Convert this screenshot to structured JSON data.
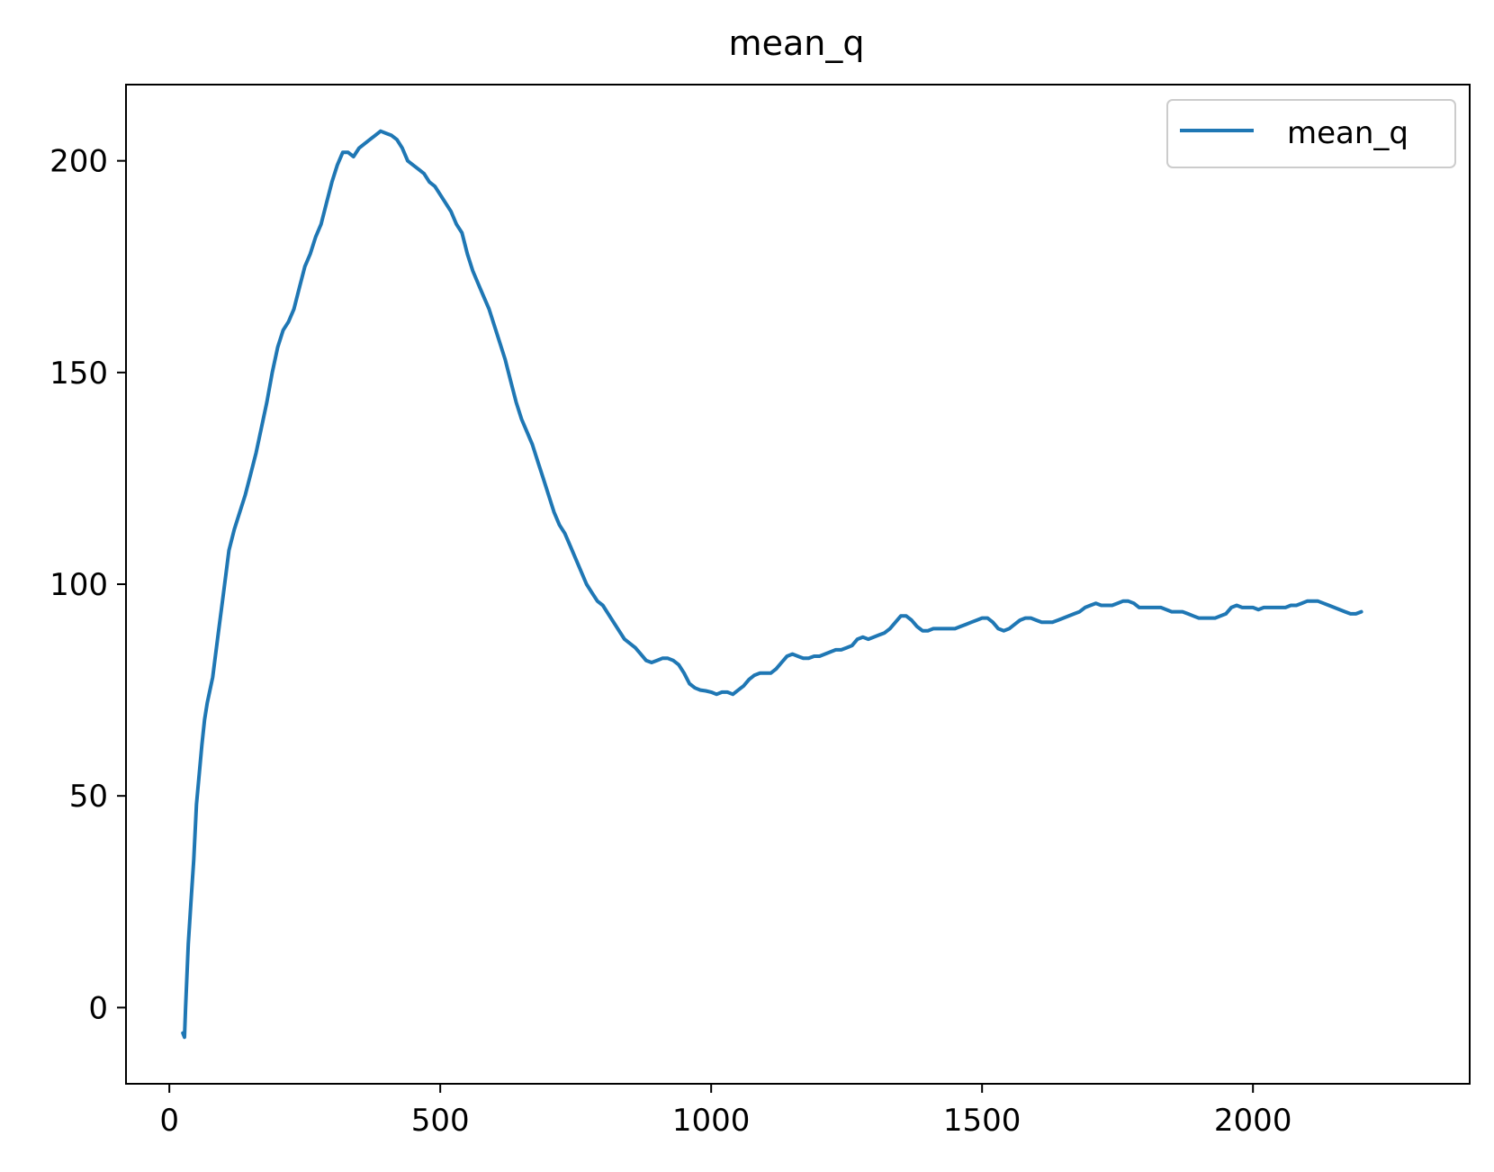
{
  "chart_data": {
    "type": "line",
    "title": "mean_q",
    "xlabel": "",
    "ylabel": "",
    "xlim": [
      -80,
      2400
    ],
    "ylim": [
      -18,
      218
    ],
    "x_ticks": [
      0,
      500,
      1000,
      1500,
      2000
    ],
    "y_ticks": [
      0,
      50,
      100,
      150,
      200
    ],
    "grid": false,
    "legend": {
      "position": "top-right",
      "entries": [
        "mean_q"
      ]
    },
    "series": [
      {
        "name": "mean_q",
        "color": "#1f77b4",
        "points": [
          [
            25,
            -6
          ],
          [
            28,
            -7
          ],
          [
            30,
            0
          ],
          [
            35,
            15
          ],
          [
            40,
            25
          ],
          [
            45,
            35
          ],
          [
            50,
            48
          ],
          [
            55,
            55
          ],
          [
            60,
            62
          ],
          [
            65,
            68
          ],
          [
            70,
            72
          ],
          [
            80,
            78
          ],
          [
            90,
            88
          ],
          [
            100,
            98
          ],
          [
            110,
            108
          ],
          [
            120,
            113
          ],
          [
            130,
            117
          ],
          [
            140,
            121
          ],
          [
            150,
            126
          ],
          [
            160,
            131
          ],
          [
            170,
            137
          ],
          [
            180,
            143
          ],
          [
            190,
            150
          ],
          [
            200,
            156
          ],
          [
            210,
            160
          ],
          [
            220,
            162
          ],
          [
            230,
            165
          ],
          [
            240,
            170
          ],
          [
            250,
            175
          ],
          [
            260,
            178
          ],
          [
            270,
            182
          ],
          [
            280,
            185
          ],
          [
            290,
            190
          ],
          [
            300,
            195
          ],
          [
            310,
            199
          ],
          [
            320,
            202
          ],
          [
            330,
            202
          ],
          [
            340,
            201
          ],
          [
            350,
            203
          ],
          [
            360,
            204
          ],
          [
            370,
            205
          ],
          [
            380,
            206
          ],
          [
            390,
            207
          ],
          [
            400,
            206.5
          ],
          [
            410,
            206
          ],
          [
            420,
            205
          ],
          [
            430,
            203
          ],
          [
            440,
            200
          ],
          [
            450,
            199
          ],
          [
            460,
            198
          ],
          [
            470,
            197
          ],
          [
            480,
            195
          ],
          [
            490,
            194
          ],
          [
            500,
            192
          ],
          [
            510,
            190
          ],
          [
            520,
            188
          ],
          [
            530,
            185
          ],
          [
            540,
            183
          ],
          [
            550,
            178
          ],
          [
            560,
            174
          ],
          [
            570,
            171
          ],
          [
            580,
            168
          ],
          [
            590,
            165
          ],
          [
            600,
            161
          ],
          [
            610,
            157
          ],
          [
            620,
            153
          ],
          [
            630,
            148
          ],
          [
            640,
            143
          ],
          [
            650,
            139
          ],
          [
            660,
            136
          ],
          [
            670,
            133
          ],
          [
            680,
            129
          ],
          [
            690,
            125
          ],
          [
            700,
            121
          ],
          [
            710,
            117
          ],
          [
            720,
            114
          ],
          [
            730,
            112
          ],
          [
            740,
            109
          ],
          [
            750,
            106
          ],
          [
            760,
            103
          ],
          [
            770,
            100
          ],
          [
            780,
            98
          ],
          [
            790,
            96
          ],
          [
            800,
            95
          ],
          [
            810,
            93
          ],
          [
            820,
            91
          ],
          [
            830,
            89
          ],
          [
            840,
            87
          ],
          [
            850,
            86
          ],
          [
            860,
            85
          ],
          [
            870,
            83.5
          ],
          [
            880,
            82
          ],
          [
            890,
            81.5
          ],
          [
            900,
            82
          ],
          [
            910,
            82.5
          ],
          [
            920,
            82.5
          ],
          [
            930,
            82
          ],
          [
            940,
            81
          ],
          [
            950,
            79
          ],
          [
            960,
            76.5
          ],
          [
            970,
            75.5
          ],
          [
            980,
            75
          ],
          [
            990,
            74.8
          ],
          [
            1000,
            74.5
          ],
          [
            1010,
            74
          ],
          [
            1020,
            74.5
          ],
          [
            1030,
            74.5
          ],
          [
            1040,
            74
          ],
          [
            1050,
            75
          ],
          [
            1060,
            76
          ],
          [
            1070,
            77.5
          ],
          [
            1080,
            78.5
          ],
          [
            1090,
            79
          ],
          [
            1100,
            79
          ],
          [
            1110,
            79
          ],
          [
            1120,
            80
          ],
          [
            1130,
            81.5
          ],
          [
            1140,
            83
          ],
          [
            1150,
            83.5
          ],
          [
            1160,
            83
          ],
          [
            1170,
            82.5
          ],
          [
            1180,
            82.5
          ],
          [
            1190,
            83
          ],
          [
            1200,
            83
          ],
          [
            1210,
            83.5
          ],
          [
            1220,
            84
          ],
          [
            1230,
            84.5
          ],
          [
            1240,
            84.5
          ],
          [
            1250,
            85
          ],
          [
            1260,
            85.5
          ],
          [
            1270,
            87
          ],
          [
            1280,
            87.5
          ],
          [
            1290,
            87
          ],
          [
            1300,
            87.5
          ],
          [
            1310,
            88
          ],
          [
            1320,
            88.5
          ],
          [
            1330,
            89.5
          ],
          [
            1340,
            91
          ],
          [
            1350,
            92.5
          ],
          [
            1360,
            92.5
          ],
          [
            1370,
            91.5
          ],
          [
            1380,
            90
          ],
          [
            1390,
            89
          ],
          [
            1400,
            89
          ],
          [
            1410,
            89.5
          ],
          [
            1420,
            89.5
          ],
          [
            1430,
            89.5
          ],
          [
            1440,
            89.5
          ],
          [
            1450,
            89.5
          ],
          [
            1460,
            90
          ],
          [
            1470,
            90.5
          ],
          [
            1480,
            91
          ],
          [
            1490,
            91.5
          ],
          [
            1500,
            92
          ],
          [
            1510,
            92
          ],
          [
            1520,
            91
          ],
          [
            1530,
            89.5
          ],
          [
            1540,
            89
          ],
          [
            1550,
            89.5
          ],
          [
            1560,
            90.5
          ],
          [
            1570,
            91.5
          ],
          [
            1580,
            92
          ],
          [
            1590,
            92
          ],
          [
            1600,
            91.5
          ],
          [
            1610,
            91
          ],
          [
            1620,
            91
          ],
          [
            1630,
            91
          ],
          [
            1640,
            91.5
          ],
          [
            1650,
            92
          ],
          [
            1660,
            92.5
          ],
          [
            1670,
            93
          ],
          [
            1680,
            93.5
          ],
          [
            1690,
            94.5
          ],
          [
            1700,
            95
          ],
          [
            1710,
            95.5
          ],
          [
            1720,
            95
          ],
          [
            1730,
            95
          ],
          [
            1740,
            95
          ],
          [
            1750,
            95.5
          ],
          [
            1760,
            96
          ],
          [
            1770,
            96
          ],
          [
            1780,
            95.5
          ],
          [
            1790,
            94.5
          ],
          [
            1800,
            94.5
          ],
          [
            1810,
            94.5
          ],
          [
            1820,
            94.5
          ],
          [
            1830,
            94.5
          ],
          [
            1840,
            94
          ],
          [
            1850,
            93.5
          ],
          [
            1860,
            93.5
          ],
          [
            1870,
            93.5
          ],
          [
            1880,
            93
          ],
          [
            1890,
            92.5
          ],
          [
            1900,
            92
          ],
          [
            1910,
            92
          ],
          [
            1920,
            92
          ],
          [
            1930,
            92
          ],
          [
            1940,
            92.5
          ],
          [
            1950,
            93
          ],
          [
            1960,
            94.5
          ],
          [
            1970,
            95
          ],
          [
            1980,
            94.5
          ],
          [
            1990,
            94.5
          ],
          [
            2000,
            94.5
          ],
          [
            2010,
            94
          ],
          [
            2020,
            94.5
          ],
          [
            2030,
            94.5
          ],
          [
            2040,
            94.5
          ],
          [
            2050,
            94.5
          ],
          [
            2060,
            94.5
          ],
          [
            2070,
            95
          ],
          [
            2080,
            95
          ],
          [
            2090,
            95.5
          ],
          [
            2100,
            96
          ],
          [
            2110,
            96
          ],
          [
            2120,
            96
          ],
          [
            2130,
            95.5
          ],
          [
            2140,
            95
          ],
          [
            2150,
            94.5
          ],
          [
            2160,
            94
          ],
          [
            2170,
            93.5
          ],
          [
            2180,
            93
          ],
          [
            2190,
            93
          ],
          [
            2200,
            93.5
          ]
        ]
      }
    ]
  }
}
